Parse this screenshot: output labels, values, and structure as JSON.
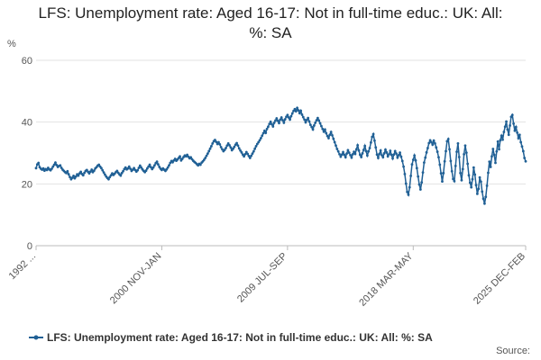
{
  "chart_data": {
    "type": "line",
    "title": "LFS: Unemployment rate: Aged 16-17: Not in full-time educ.: UK: All: %: SA",
    "y_unit": "%",
    "source": "Source:",
    "categories": [
      "1992 ...",
      null,
      null,
      null,
      null,
      null,
      null,
      null,
      null,
      null,
      null,
      null,
      null,
      null,
      null,
      null,
      null,
      null,
      null,
      null,
      null,
      null,
      null,
      null,
      null,
      null,
      null,
      null,
      null,
      null,
      null,
      null,
      null,
      null,
      null,
      null,
      null,
      null,
      null,
      null,
      null,
      null,
      null,
      null,
      null,
      null,
      null,
      null,
      null,
      null,
      null,
      null,
      null,
      null,
      null,
      null,
      null,
      null,
      null,
      null,
      null,
      null,
      null,
      null,
      null,
      null,
      null,
      null,
      null,
      null,
      null,
      null,
      null,
      null,
      null,
      null,
      null,
      null,
      null,
      null,
      null,
      null,
      null,
      null,
      null,
      null,
      null,
      null,
      null,
      null,
      null,
      null,
      null,
      null,
      null,
      null,
      null,
      null,
      null,
      null,
      null,
      null,
      null,
      null,
      "2000 NOV-JAN",
      null,
      null,
      null,
      null,
      null,
      null,
      null,
      null,
      null,
      null,
      null,
      null,
      null,
      null,
      null,
      null,
      null,
      null,
      null,
      null,
      null,
      null,
      null,
      null,
      null,
      null,
      null,
      null,
      null,
      null,
      null,
      null,
      null,
      null,
      null,
      null,
      null,
      null,
      null,
      null,
      null,
      null,
      null,
      null,
      null,
      null,
      null,
      null,
      null,
      null,
      null,
      null,
      null,
      null,
      null,
      null,
      null,
      null,
      null,
      null,
      null,
      null,
      null,
      null,
      null,
      null,
      null,
      null,
      null,
      null,
      null,
      null,
      null,
      null,
      null,
      null,
      null,
      null,
      null,
      null,
      null,
      null,
      null,
      null,
      null,
      null,
      null,
      null,
      null,
      null,
      null,
      null,
      null,
      null,
      null,
      null,
      null,
      null,
      null,
      null,
      null,
      null,
      null,
      "2009 JUL-SEP",
      null,
      null,
      null,
      null,
      null,
      null,
      null,
      null,
      null,
      null,
      null,
      null,
      null,
      null,
      null,
      null,
      null,
      null,
      null,
      null,
      null,
      null,
      null,
      null,
      null,
      null,
      null,
      null,
      null,
      null,
      null,
      null,
      null,
      null,
      null,
      null,
      null,
      null,
      null,
      null,
      null,
      null,
      null,
      null,
      null,
      null,
      null,
      null,
      null,
      null,
      null,
      null,
      null,
      null,
      null,
      null,
      null,
      null,
      null,
      null,
      null,
      null,
      null,
      null,
      null,
      null,
      null,
      null,
      null,
      null,
      null,
      null,
      null,
      null,
      null,
      null,
      null,
      null,
      null,
      null,
      null,
      null,
      null,
      null,
      null,
      null,
      null,
      null,
      null,
      null,
      null,
      null,
      null,
      null,
      null,
      null,
      null,
      null,
      null,
      null,
      null,
      null,
      null,
      "2018 MAR-MAY",
      null,
      null,
      null,
      null,
      null,
      null,
      null,
      null,
      null,
      null,
      null,
      null,
      null,
      null,
      null,
      null,
      null,
      null,
      null,
      null,
      null,
      null,
      null,
      null,
      null,
      null,
      null,
      null,
      null,
      null,
      null,
      null,
      null,
      null,
      null,
      null,
      null,
      null,
      null,
      null,
      null,
      null,
      null,
      null,
      null,
      null,
      null,
      null,
      null,
      null,
      null,
      null,
      null,
      null,
      null,
      null,
      null,
      null,
      null,
      null,
      null,
      null,
      null,
      null,
      null,
      null,
      null,
      null,
      null,
      null,
      null,
      null,
      null,
      null,
      null,
      null,
      null,
      null,
      null,
      null,
      null,
      null,
      null,
      null,
      null,
      null,
      null,
      null,
      null,
      null,
      null,
      null,
      "2025 DEC-FEB"
    ],
    "series": [
      {
        "name": "LFS: Unemployment rate: Aged 16-17: Not in full-time educ.: UK: All: %: SA",
        "color": "#206095",
        "values": [
          25.1,
          26.3,
          26.8,
          25.4,
          24.9,
          24.6,
          25.0,
          24.3,
          24.8,
          24.5,
          25.2,
          24.7,
          24.4,
          24.9,
          25.6,
          26.2,
          26.9,
          26.1,
          25.5,
          25.8,
          26.0,
          25.2,
          24.6,
          24.2,
          23.8,
          23.5,
          24.1,
          23.1,
          22.2,
          21.5,
          22.0,
          22.6,
          21.8,
          22.4,
          23.1,
          22.7,
          23.4,
          23.9,
          23.2,
          22.8,
          23.6,
          24.2,
          24.5,
          23.9,
          23.4,
          24.0,
          24.6,
          23.8,
          24.3,
          25.0,
          25.4,
          25.9,
          26.2,
          25.6,
          25.1,
          24.4,
          23.7,
          23.0,
          22.4,
          21.9,
          21.5,
          22.2,
          22.8,
          23.4,
          22.9,
          23.3,
          23.8,
          24.2,
          23.6,
          23.1,
          22.7,
          23.5,
          24.1,
          24.8,
          25.3,
          24.7,
          25.0,
          25.6,
          24.9,
          24.2,
          24.6,
          25.1,
          24.5,
          24.0,
          24.4,
          25.2,
          25.9,
          25.3,
          24.7,
          24.2,
          23.8,
          24.3,
          25.0,
          25.6,
          26.2,
          25.4,
          24.8,
          25.3,
          26.0,
          26.7,
          27.2,
          26.3,
          25.5,
          24.9,
          24.5,
          25.0,
          24.6,
          24.2,
          24.7,
          25.3,
          26.0,
          26.8,
          27.4,
          27.0,
          27.6,
          28.1,
          27.5,
          27.9,
          28.4,
          28.9,
          27.6,
          28.1,
          28.7,
          29.2,
          28.9,
          29.4,
          28.8,
          28.3,
          28.6,
          28.0,
          27.5,
          27.1,
          26.8,
          26.4,
          26.0,
          26.5,
          26.2,
          26.9,
          27.3,
          27.8,
          28.4,
          29.1,
          29.8,
          30.6,
          31.4,
          32.2,
          33.1,
          33.8,
          34.2,
          33.6,
          32.9,
          33.5,
          32.8,
          31.9,
          31.2,
          30.6,
          31.0,
          31.6,
          32.4,
          33.1,
          32.5,
          31.8,
          30.9,
          31.4,
          32.0,
          32.7,
          33.2,
          32.4,
          31.5,
          30.8,
          30.2,
          29.5,
          28.9,
          29.6,
          30.3,
          29.7,
          29.0,
          28.4,
          29.1,
          29.8,
          30.5,
          31.4,
          32.2,
          32.9,
          33.5,
          34.1,
          34.8,
          35.6,
          36.4,
          37.2,
          36.5,
          37.8,
          38.5,
          39.4,
          40.1,
          39.3,
          38.6,
          39.8,
          40.5,
          41.2,
          40.4,
          39.7,
          40.8,
          41.5,
          40.6,
          39.8,
          40.9,
          41.7,
          42.3,
          41.5,
          40.8,
          41.9,
          42.8,
          43.6,
          44.2,
          43.5,
          44.6,
          43.8,
          42.9,
          43.7,
          42.4,
          41.6,
          40.8,
          39.9,
          40.7,
          41.3,
          40.2,
          39.1,
          38.4,
          37.6,
          38.9,
          39.8,
          40.6,
          41.3,
          40.5,
          39.6,
          38.7,
          37.8,
          36.9,
          37.6,
          36.4,
          35.5,
          34.8,
          35.9,
          36.8,
          35.7,
          34.6,
          33.5,
          32.4,
          31.3,
          30.5,
          29.6,
          28.8,
          29.5,
          30.3,
          29.4,
          28.6,
          29.8,
          30.9,
          30.1,
          29.3,
          28.5,
          29.6,
          30.4,
          29.7,
          31.2,
          32.5,
          30.8,
          29.4,
          28.7,
          29.9,
          31.0,
          32.3,
          30.6,
          29.2,
          30.5,
          31.6,
          33.4,
          35.2,
          36.1,
          34.0,
          31.8,
          29.5,
          28.4,
          29.7,
          30.8,
          29.3,
          28.6,
          29.9,
          31.1,
          30.2,
          28.9,
          29.6,
          30.7,
          29.4,
          28.2,
          29.5,
          30.6,
          29.8,
          28.5,
          29.3,
          30.1,
          28.8,
          27.4,
          25.6,
          23.2,
          20.1,
          17.4,
          16.5,
          18.9,
          22.6,
          26.3,
          27.8,
          29.2,
          27.6,
          25.1,
          22.4,
          19.8,
          18.2,
          20.5,
          23.7,
          26.9,
          28.5,
          30.2,
          31.6,
          33.2,
          34.1,
          33.5,
          32.7,
          34.0,
          33.1,
          31.8,
          30.4,
          28.6,
          26.2,
          23.4,
          20.8,
          23.5,
          27.3,
          30.6,
          33.8,
          34.5,
          31.2,
          27.4,
          24.1,
          21.6,
          20.9,
          25.8,
          30.4,
          33.1,
          28.7,
          23.5,
          21.2,
          24.8,
          29.6,
          32.4,
          30.1,
          26.5,
          22.8,
          20.4,
          18.9,
          21.5,
          25.3,
          23.0,
          19.6,
          16.8,
          18.4,
          22.1,
          20.7,
          17.5,
          15.2,
          13.6,
          15.8,
          19.4,
          23.6,
          27.2,
          25.5,
          28.9,
          31.3,
          29.4,
          26.8,
          30.5,
          33.7,
          31.2,
          34.1,
          35.6,
          34.3,
          36.8,
          38.5,
          40.2,
          37.6,
          35.9,
          38.9,
          41.7,
          42.3,
          39.5,
          37.2,
          38.4,
          36.6,
          34.8,
          35.9,
          33.5,
          32.1,
          30.6,
          28.4,
          27.3
        ]
      }
    ],
    "ylim": [
      0,
      60
    ],
    "yticks": [
      0,
      20,
      40,
      60
    ],
    "grid": true,
    "legend": "bottom"
  }
}
